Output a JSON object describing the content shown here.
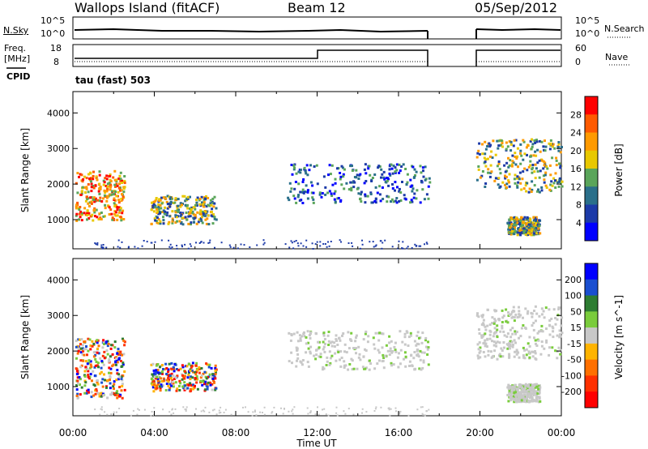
{
  "header": {
    "station": "Wallops Island (fitACF)",
    "beam": "Beam 12",
    "date": "05/Sep/2012"
  },
  "side_labels": {
    "nsky": "N.Sky",
    "nsearch": "N.Search",
    "freq_line1": "Freq.",
    "freq_line2": "[MHz]",
    "nave": "Nave",
    "cpid": "CPID",
    "cpid_value": "tau (fast) 503"
  },
  "strip_axes": {
    "noise_left": [
      "10^5",
      "10^0"
    ],
    "noise_right": [
      "10^5",
      "10^0"
    ],
    "freq_left": [
      "18",
      "8"
    ],
    "freq_right": [
      "60",
      "0"
    ]
  },
  "xaxis": {
    "ticks": [
      "00:00",
      "04:00",
      "08:00",
      "12:00",
      "16:00",
      "20:00",
      "00:00"
    ],
    "label": "Time UT"
  },
  "chart_data": [
    {
      "type": "heatmap",
      "name": "power",
      "ylabel": "Slant Range [km]",
      "yticks": [
        1000,
        2000,
        3000,
        4000
      ],
      "ylim": [
        180,
        4600
      ],
      "xlim_hours": [
        0,
        24
      ],
      "colorbar_label": "Power [dB]",
      "colorbar_ticks": [
        "28",
        "24",
        "20",
        "16",
        "12",
        "8",
        "4"
      ],
      "colorbar_colors": [
        "#ff0000",
        "#ff5a00",
        "#ff9a00",
        "#e8c800",
        "#5aa55a",
        "#2a6f8a",
        "#1c3aa8",
        "#0000ff"
      ],
      "regions": [
        {
          "t": [
            0.1,
            2.5
          ],
          "r": [
            1000,
            2400
          ],
          "level": "high"
        },
        {
          "t": [
            3.8,
            7.0
          ],
          "r": [
            900,
            1700
          ],
          "level": "mid"
        },
        {
          "t": [
            10.5,
            17.5
          ],
          "r": [
            1500,
            2600
          ],
          "level": "low"
        },
        {
          "t": [
            19.8,
            24.0
          ],
          "r": [
            1800,
            3300
          ],
          "level": "mid"
        },
        {
          "t": [
            21.3,
            22.9
          ],
          "r": [
            600,
            1100
          ],
          "level": "mid"
        }
      ]
    },
    {
      "type": "heatmap",
      "name": "velocity",
      "ylabel": "Slant Range [km]",
      "yticks": [
        1000,
        2000,
        3000,
        4000
      ],
      "ylim": [
        180,
        4600
      ],
      "xlim_hours": [
        0,
        24
      ],
      "colorbar_label": "Velocity [m s^-1]",
      "colorbar_ticks": [
        "200",
        "100",
        "50",
        "15",
        "-15",
        "-50",
        "-100",
        "-200"
      ],
      "colorbar_colors": [
        "#0000ff",
        "#1a4fd0",
        "#2e7d32",
        "#7acc3c",
        "#c8c8c8",
        "#ffb400",
        "#ff7000",
        "#ff3000",
        "#ff0000"
      ],
      "regions": [
        {
          "t": [
            0.1,
            2.5
          ],
          "r": [
            700,
            2400
          ],
          "level": "mixed"
        },
        {
          "t": [
            3.8,
            7.0
          ],
          "r": [
            900,
            1700
          ],
          "level": "mixed"
        },
        {
          "t": [
            10.5,
            17.5
          ],
          "r": [
            1500,
            2600
          ],
          "level": "ground"
        },
        {
          "t": [
            19.8,
            24.0
          ],
          "r": [
            1800,
            3300
          ],
          "level": "ground"
        },
        {
          "t": [
            21.3,
            22.9
          ],
          "r": [
            600,
            1100
          ],
          "level": "ground"
        }
      ]
    }
  ]
}
